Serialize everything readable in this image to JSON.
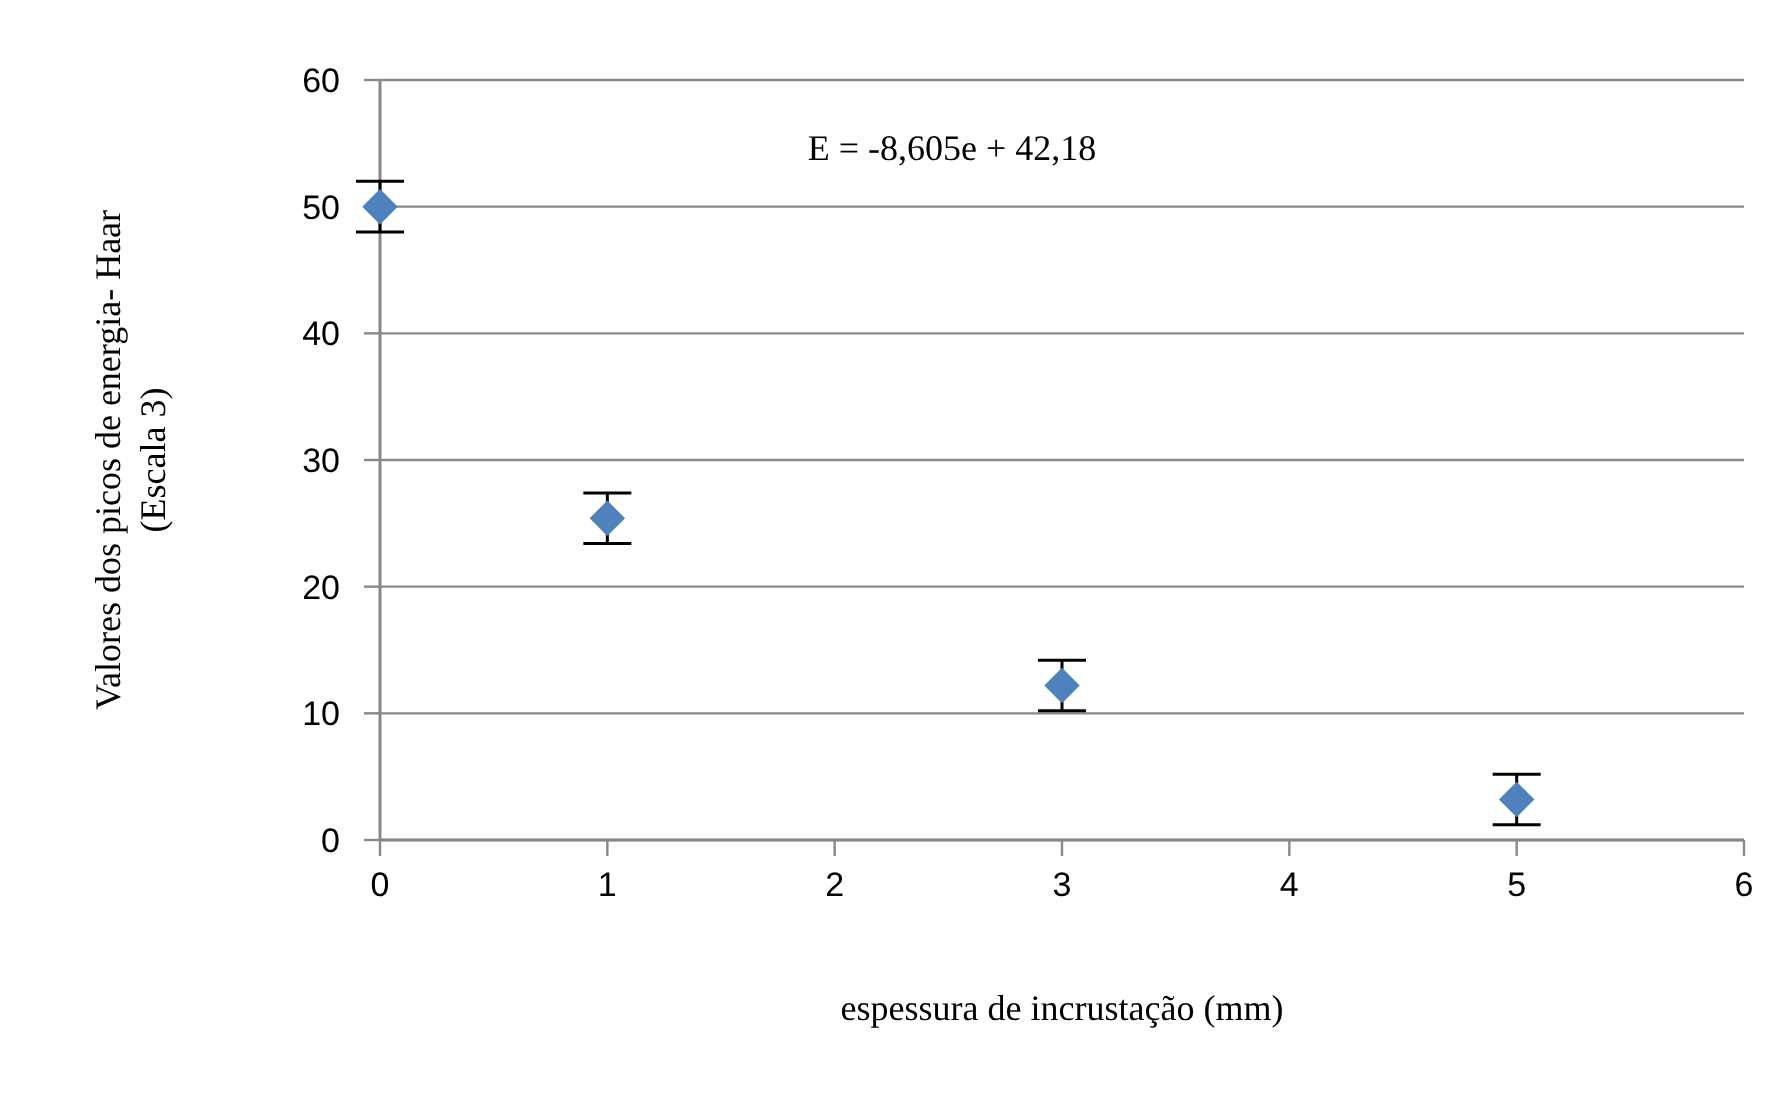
{
  "chart_data": {
    "type": "scatter",
    "xlabel": "espessura de incrustação (mm)",
    "ylabel": "Valores dos picos de energia- Haar\n(Escala 3)",
    "annotations": [
      "E = -8,605e + 42,18"
    ],
    "x": [
      0,
      1,
      3,
      5
    ],
    "series": [
      {
        "color": "#4f81bd",
        "values": [
          50,
          25.4,
          12.2,
          3.2
        ],
        "errors": [
          2,
          2,
          2,
          2
        ]
      }
    ],
    "xlim": [
      0,
      6
    ],
    "xticks": [
      0,
      1,
      2,
      3,
      4,
      5,
      6
    ],
    "ylim": [
      0,
      60
    ],
    "yticks": [
      0,
      10,
      20,
      30,
      40,
      50,
      60
    ],
    "grid": "y",
    "marker": "diamond"
  }
}
